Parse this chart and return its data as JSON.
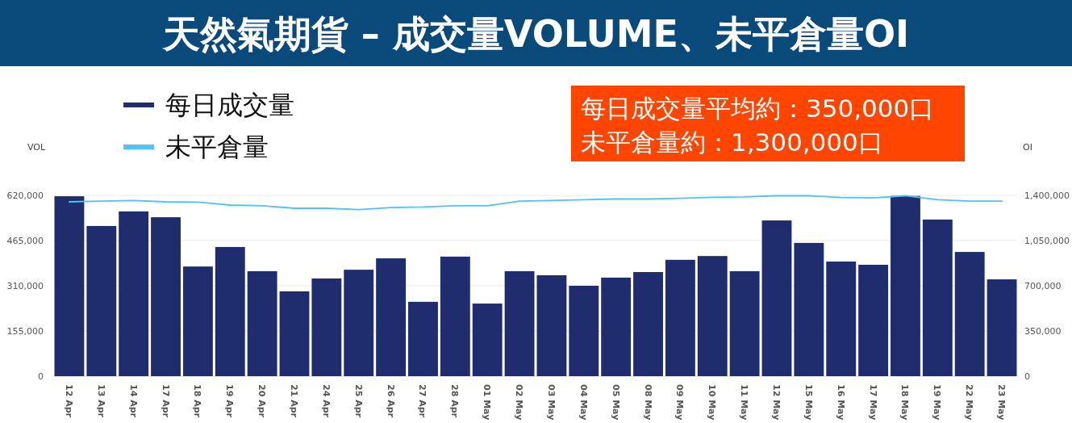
{
  "chart_data": {
    "type": "bar",
    "title": "天然氣期貨 – 成交量VOLUME、未平倉量OI",
    "ylabel": "VOL",
    "y2label": "OI",
    "annotations": [
      "每日成交量平均約：350,000口",
      "未平倉量約：1,300,000口"
    ],
    "categories": [
      "12 Apr",
      "13 Apr",
      "14 Apr",
      "17 Apr",
      "18 Apr",
      "19 Apr",
      "20 Apr",
      "21 Apr",
      "24 Apr",
      "25 Apr",
      "26 Apr",
      "27 Apr",
      "28 Apr",
      "01 May",
      "02 May",
      "03 May",
      "04 May",
      "05 May",
      "08 May",
      "09 May",
      "10 May",
      "11 May",
      "12 May",
      "15 May",
      "16 May",
      "17 May",
      "18 May",
      "19 May",
      "22 May",
      "23 May"
    ],
    "series": [
      {
        "name": "每日成交量",
        "color": "#1f2d6e",
        "values": [
          617000,
          515000,
          565000,
          545000,
          376000,
          443000,
          360000,
          291000,
          335000,
          365000,
          404000,
          255000,
          410000,
          249000,
          360000,
          346000,
          310000,
          338000,
          357000,
          399000,
          412000,
          360000,
          534000,
          457000,
          393000,
          382000,
          618000,
          537000,
          426000,
          332000
        ]
      },
      {
        "name": "未平倉量",
        "type": "line",
        "axis": "y2",
        "color": "#4fc3f7",
        "values": [
          1350000,
          1355000,
          1360000,
          1350000,
          1348000,
          1325000,
          1320000,
          1300000,
          1300000,
          1290000,
          1306000,
          1310000,
          1320000,
          1320000,
          1356000,
          1360000,
          1366000,
          1372000,
          1372000,
          1377000,
          1385000,
          1388000,
          1397000,
          1397000,
          1383000,
          1380000,
          1397000,
          1366000,
          1355000,
          1355000
        ]
      }
    ],
    "ylim": [
      0,
      620000
    ],
    "yticks": [
      {
        "value": 0,
        "label": "0"
      },
      {
        "value": 155000,
        "label": "155,000"
      },
      {
        "value": 310000,
        "label": "310,000"
      },
      {
        "value": 465000,
        "label": "465,000"
      },
      {
        "value": 620000,
        "label": "620,000"
      }
    ],
    "y2lim": [
      0,
      1400000
    ],
    "y2ticks": [
      {
        "value": 0,
        "label": "0"
      },
      {
        "value": 350000,
        "label": "350,000"
      },
      {
        "value": 700000,
        "label": "700,000"
      },
      {
        "value": 1050000,
        "label": "1,050,000"
      },
      {
        "value": 1400000,
        "label": "1,400,000"
      }
    ],
    "grid": "y",
    "legend": "top left"
  }
}
